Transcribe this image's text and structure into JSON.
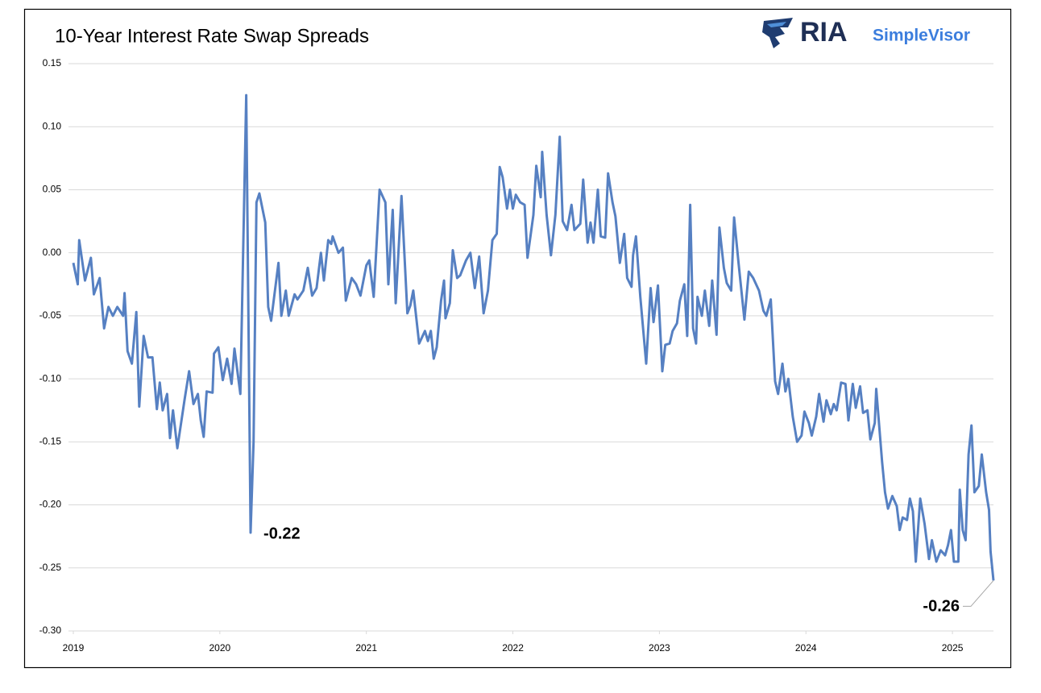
{
  "chart_data": {
    "type": "line",
    "title": "10-Year Interest Rate Swap Spreads",
    "brand": "RIA",
    "brand_sub": "SimpleVisor",
    "color": "#5680c2",
    "xlim": [
      2019,
      2025.28
    ],
    "xticks": [
      2019,
      2020,
      2021,
      2022,
      2023,
      2024,
      2025
    ],
    "ylim": [
      -0.3,
      0.15
    ],
    "yticks": [
      {
        "value": -0.3,
        "label": "-0.30"
      },
      -0.25,
      {
        "value": -0.2,
        "label": "-0.20"
      },
      -0.15,
      {
        "value": -0.1,
        "label": "-0.10"
      },
      -0.05,
      {
        "value": 0,
        "label": "0.00"
      },
      0.05,
      {
        "value": 0.1,
        "label": "0.10"
      },
      0.15
    ],
    "grid": true,
    "x": [
      2019.0,
      2019.03,
      2019.04,
      2019.08,
      2019.12,
      2019.14,
      2019.18,
      2019.21,
      2019.24,
      2019.27,
      2019.3,
      2019.34,
      2019.35,
      2019.37,
      2019.4,
      2019.43,
      2019.45,
      2019.48,
      2019.51,
      2019.54,
      2019.57,
      2019.59,
      2019.61,
      2019.64,
      2019.66,
      2019.68,
      2019.69,
      2019.71,
      2019.76,
      2019.79,
      2019.82,
      2019.85,
      2019.87,
      2019.89,
      2019.91,
      2019.95,
      2019.96,
      2019.99,
      2020.02,
      2020.05,
      2020.08,
      2020.1,
      2020.14,
      2020.18,
      2020.21,
      2020.23,
      2020.25,
      2020.27,
      2020.31,
      2020.33,
      2020.35,
      2020.4,
      2020.42,
      2020.45,
      2020.47,
      2020.51,
      2020.53,
      2020.57,
      2020.6,
      2020.63,
      2020.66,
      2020.69,
      2020.71,
      2020.74,
      2020.76,
      2020.77,
      2020.81,
      2020.84,
      2020.86,
      2020.9,
      2020.93,
      2020.96,
      2021.0,
      2021.02,
      2021.05,
      2021.09,
      2021.13,
      2021.15,
      2021.18,
      2021.2,
      2021.24,
      2021.28,
      2021.3,
      2021.32,
      2021.36,
      2021.4,
      2021.42,
      2021.44,
      2021.46,
      2021.48,
      2021.51,
      2021.53,
      2021.54,
      2021.57,
      2021.59,
      2021.62,
      2021.64,
      2021.68,
      2021.71,
      2021.74,
      2021.77,
      2021.8,
      2021.83,
      2021.86,
      2021.89,
      2021.91,
      2021.93,
      2021.96,
      2021.98,
      2022.0,
      2022.02,
      2022.05,
      2022.08,
      2022.1,
      2022.14,
      2022.16,
      2022.19,
      2022.2,
      2022.23,
      2022.26,
      2022.29,
      2022.32,
      2022.34,
      2022.37,
      2022.4,
      2022.42,
      2022.46,
      2022.48,
      2022.51,
      2022.53,
      2022.55,
      2022.58,
      2022.6,
      2022.63,
      2022.65,
      2022.68,
      2022.7,
      2022.73,
      2022.76,
      2022.78,
      2022.81,
      2022.82,
      2022.84,
      2022.87,
      2022.91,
      2022.94,
      2022.96,
      2022.99,
      2023.02,
      2023.04,
      2023.07,
      2023.09,
      2023.12,
      2023.14,
      2023.17,
      2023.19,
      2023.21,
      2023.23,
      2023.25,
      2023.26,
      2023.29,
      2023.31,
      2023.34,
      2023.36,
      2023.39,
      2023.41,
      2023.44,
      2023.46,
      2023.49,
      2023.51,
      2023.54,
      2023.58,
      2023.61,
      2023.64,
      2023.68,
      2023.71,
      2023.73,
      2023.76,
      2023.79,
      2023.81,
      2023.84,
      2023.86,
      2023.88,
      2023.91,
      2023.94,
      2023.97,
      2023.99,
      2024.02,
      2024.04,
      2024.07,
      2024.09,
      2024.12,
      2024.14,
      2024.17,
      2024.19,
      2024.21,
      2024.24,
      2024.27,
      2024.29,
      2024.32,
      2024.34,
      2024.37,
      2024.39,
      2024.42,
      2024.44,
      2024.47,
      2024.48,
      2024.52,
      2024.54,
      2024.56,
      2024.59,
      2024.62,
      2024.64,
      2024.66,
      2024.69,
      2024.71,
      2024.73,
      2024.75,
      2024.78,
      2024.81,
      2024.84,
      2024.86,
      2024.89,
      2024.92,
      2024.95,
      2024.97,
      2024.99,
      2025.01,
      2025.04,
      2025.05,
      2025.07,
      2025.09,
      2025.11,
      2025.13,
      2025.15,
      2025.18,
      2025.2,
      2025.23,
      2025.25,
      2025.26,
      2025.28
    ],
    "values": [
      -0.008,
      -0.025,
      0.01,
      -0.022,
      -0.004,
      -0.033,
      -0.02,
      -0.06,
      -0.043,
      -0.05,
      -0.043,
      -0.05,
      -0.032,
      -0.078,
      -0.088,
      -0.047,
      -0.122,
      -0.066,
      -0.083,
      -0.083,
      -0.124,
      -0.103,
      -0.125,
      -0.112,
      -0.147,
      -0.125,
      -0.135,
      -0.155,
      -0.116,
      -0.094,
      -0.12,
      -0.112,
      -0.133,
      -0.146,
      -0.11,
      -0.111,
      -0.08,
      -0.075,
      -0.101,
      -0.084,
      -0.104,
      -0.076,
      -0.112,
      0.125,
      -0.222,
      -0.15,
      0.04,
      0.047,
      0.024,
      -0.043,
      -0.054,
      -0.008,
      -0.05,
      -0.03,
      -0.05,
      -0.033,
      -0.037,
      -0.03,
      -0.012,
      -0.034,
      -0.028,
      0.0,
      -0.022,
      0.01,
      0.007,
      0.013,
      0.0,
      0.004,
      -0.038,
      -0.02,
      -0.025,
      -0.034,
      -0.01,
      -0.006,
      -0.035,
      0.05,
      0.04,
      -0.025,
      0.034,
      -0.04,
      0.045,
      -0.048,
      -0.042,
      -0.03,
      -0.072,
      -0.062,
      -0.07,
      -0.062,
      -0.084,
      -0.075,
      -0.038,
      -0.022,
      -0.052,
      -0.04,
      0.002,
      -0.02,
      -0.018,
      -0.006,
      0.0,
      -0.028,
      -0.003,
      -0.048,
      -0.03,
      0.01,
      0.015,
      0.068,
      0.06,
      0.035,
      0.05,
      0.035,
      0.046,
      0.04,
      0.038,
      -0.004,
      0.03,
      0.069,
      0.044,
      0.08,
      0.03,
      -0.002,
      0.03,
      0.092,
      0.025,
      0.018,
      0.038,
      0.018,
      0.023,
      0.058,
      0.008,
      0.024,
      0.008,
      0.05,
      0.013,
      0.012,
      0.063,
      0.04,
      0.029,
      -0.008,
      0.015,
      -0.02,
      -0.027,
      -0.002,
      0.013,
      -0.035,
      -0.088,
      -0.028,
      -0.055,
      -0.026,
      -0.094,
      -0.073,
      -0.072,
      -0.062,
      -0.056,
      -0.038,
      -0.025,
      -0.066,
      0.038,
      -0.06,
      -0.072,
      -0.035,
      -0.05,
      -0.03,
      -0.058,
      -0.022,
      -0.065,
      0.02,
      -0.012,
      -0.024,
      -0.03,
      0.028,
      -0.008,
      -0.053,
      -0.015,
      -0.02,
      -0.03,
      -0.046,
      -0.05,
      -0.037,
      -0.102,
      -0.112,
      -0.088,
      -0.11,
      -0.1,
      -0.13,
      -0.15,
      -0.145,
      -0.126,
      -0.135,
      -0.145,
      -0.13,
      -0.112,
      -0.134,
      -0.117,
      -0.128,
      -0.12,
      -0.125,
      -0.103,
      -0.104,
      -0.133,
      -0.104,
      -0.123,
      -0.106,
      -0.127,
      -0.125,
      -0.148,
      -0.135,
      -0.108,
      -0.166,
      -0.19,
      -0.203,
      -0.193,
      -0.201,
      -0.22,
      -0.21,
      -0.212,
      -0.195,
      -0.205,
      -0.245,
      -0.195,
      -0.215,
      -0.243,
      -0.228,
      -0.245,
      -0.236,
      -0.24,
      -0.232,
      -0.22,
      -0.245,
      -0.245,
      -0.188,
      -0.22,
      -0.228,
      -0.16,
      -0.137,
      -0.19,
      -0.185,
      -0.16,
      -0.19,
      -0.204,
      -0.237,
      -0.26
    ],
    "value_labels": [
      null,
      null,
      null,
      null,
      null,
      null,
      null,
      null,
      null,
      null,
      null,
      null,
      null,
      null,
      null,
      null,
      null,
      null,
      null,
      null,
      null,
      null,
      null,
      null,
      null,
      null,
      null,
      null,
      null,
      null,
      null,
      null,
      null,
      null,
      null,
      null,
      null,
      null,
      null,
      null,
      null,
      null,
      null,
      null,
      "-0.22",
      null,
      null,
      null,
      null,
      null,
      null,
      null,
      null,
      null,
      null,
      null,
      null,
      null,
      null,
      null,
      null,
      null,
      null,
      null,
      null,
      null,
      null,
      null,
      null,
      null,
      null,
      null,
      null,
      null,
      null,
      null,
      null,
      null,
      null,
      null,
      null,
      null,
      null,
      null,
      null,
      null,
      null,
      null,
      null,
      null,
      null,
      null,
      null,
      null,
      null,
      null,
      null,
      null,
      null,
      null,
      null,
      null,
      null,
      null,
      null,
      null,
      null,
      null,
      null,
      null,
      null,
      null,
      null,
      null,
      null,
      null,
      null,
      null,
      null,
      null,
      null,
      null,
      null,
      null,
      null,
      null,
      null,
      null,
      null,
      null,
      null,
      null,
      null,
      null,
      null,
      null,
      null,
      null,
      null,
      null,
      null,
      null,
      null,
      null,
      null,
      null,
      null,
      null,
      null,
      null,
      null,
      null,
      null,
      null,
      null,
      null,
      null,
      null,
      null,
      null,
      null,
      null,
      null,
      null,
      null,
      null,
      null,
      null,
      null,
      null,
      null,
      null,
      null,
      null,
      null,
      null,
      null,
      null,
      null,
      null,
      null,
      null,
      null,
      null,
      null,
      null,
      null,
      null,
      null,
      null,
      null,
      null,
      null,
      null,
      null,
      null,
      null,
      null,
      null,
      null,
      null,
      null,
      null,
      null,
      null,
      null,
      null,
      null,
      null,
      null,
      null,
      null,
      null,
      null,
      null,
      null,
      null,
      null,
      null,
      null,
      null,
      null,
      null,
      null,
      null,
      null,
      null,
      null,
      null,
      null,
      null,
      null,
      null,
      null,
      null,
      null,
      null,
      null,
      null,
      null,
      "-0.26"
    ]
  }
}
